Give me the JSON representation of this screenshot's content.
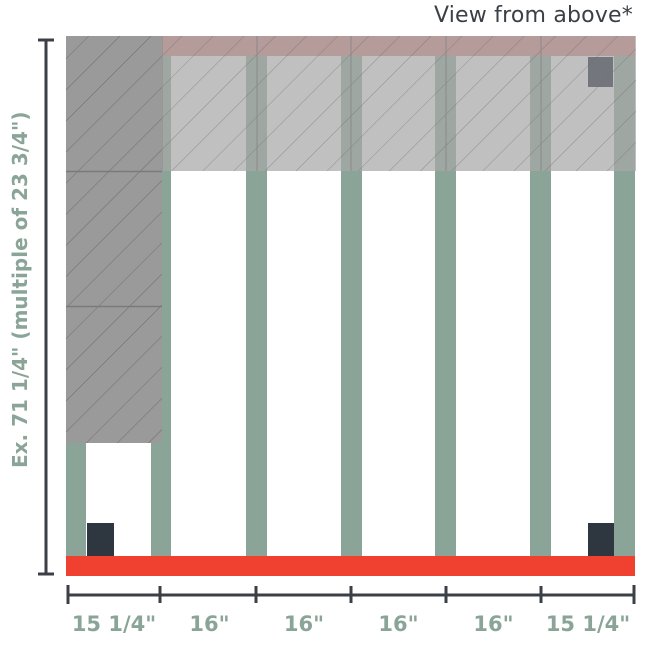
{
  "title": "View from above*",
  "vertical_dimension": "Ex. 71 1/4\" (multiple of 23 3/4\")",
  "horizontal_spacings": [
    "15 1/4\"",
    "16\"",
    "16\"",
    "16\"",
    "16\"",
    "15 1/4\""
  ],
  "colors": {
    "stud": "#8aa597",
    "bottom_plate": "#f04030",
    "top_plate": "#d77a74",
    "tile": "#a9a9a9",
    "block": "#2e3740",
    "dimension_line": "#3a4046",
    "label": "#8aa597"
  }
}
